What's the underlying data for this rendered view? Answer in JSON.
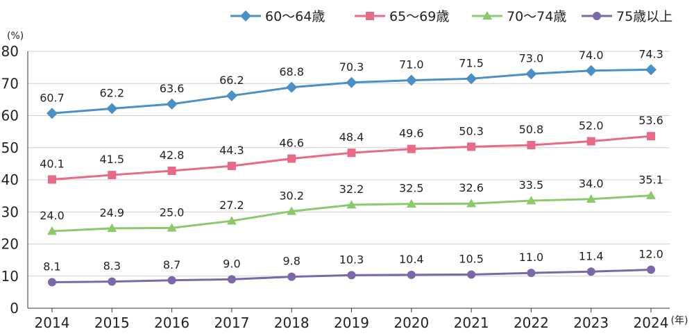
{
  "chart_data": {
    "type": "line",
    "title": "",
    "xlabel": "",
    "ylabel": "",
    "y_unit": "(%)",
    "x_unit": "(年)",
    "ylim": [
      0,
      80
    ],
    "yticks": [
      "0",
      "10",
      "20",
      "30",
      "40",
      "50",
      "60",
      "70",
      "80"
    ],
    "categories": [
      "2014",
      "2015",
      "2016",
      "2017",
      "2018",
      "2019",
      "2020",
      "2021",
      "2022",
      "2023",
      "2024"
    ],
    "legend_position": "top-right",
    "grid": true,
    "series": [
      {
        "name": "60～64歳",
        "color": "#4a90c8",
        "marker": "diamond",
        "values": [
          60.7,
          62.2,
          63.6,
          66.2,
          68.8,
          70.3,
          71.0,
          71.5,
          73.0,
          74.0,
          74.3
        ],
        "labels": [
          "60.7",
          "62.2",
          "63.6",
          "66.2",
          "68.8",
          "70.3",
          "71.0",
          "71.5",
          "73.0",
          "74.0",
          "74.3"
        ]
      },
      {
        "name": "65～69歳",
        "color": "#e86a85",
        "marker": "square",
        "values": [
          40.1,
          41.5,
          42.8,
          44.3,
          46.6,
          48.4,
          49.6,
          50.3,
          50.8,
          52.0,
          53.6
        ],
        "labels": [
          "40.1",
          "41.5",
          "42.8",
          "44.3",
          "46.6",
          "48.4",
          "49.6",
          "50.3",
          "50.8",
          "52.0",
          "53.6"
        ]
      },
      {
        "name": "70～74歳",
        "color": "#8cc96a",
        "marker": "triangle",
        "values": [
          24.0,
          24.9,
          25.0,
          27.2,
          30.2,
          32.2,
          32.5,
          32.6,
          33.5,
          34.0,
          35.1
        ],
        "labels": [
          "24.0",
          "24.9",
          "25.0",
          "27.2",
          "30.2",
          "32.2",
          "32.5",
          "32.6",
          "33.5",
          "34.0",
          "35.1"
        ]
      },
      {
        "name": "75歳以上",
        "color": "#7a68aa",
        "marker": "circle",
        "values": [
          8.1,
          8.3,
          8.7,
          9.0,
          9.8,
          10.3,
          10.4,
          10.5,
          11.0,
          11.4,
          12.0
        ],
        "labels": [
          "8.1",
          "8.3",
          "8.7",
          "9.0",
          "9.8",
          "10.3",
          "10.4",
          "10.5",
          "11.0",
          "11.4",
          "12.0"
        ]
      }
    ]
  }
}
